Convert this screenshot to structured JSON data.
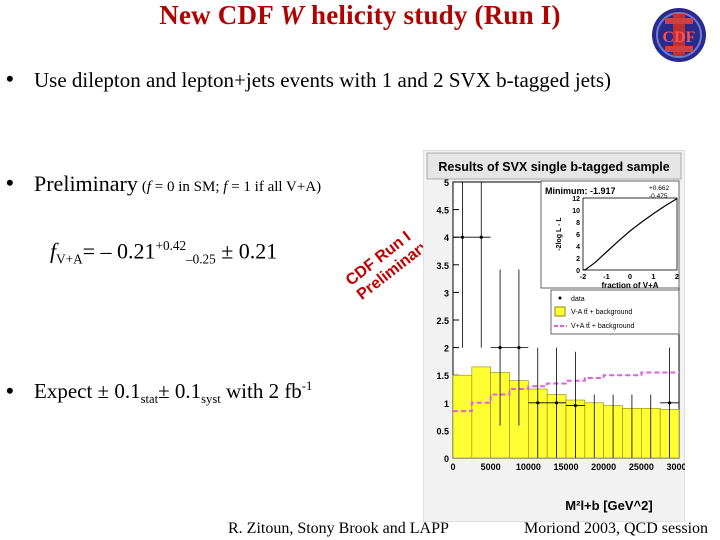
{
  "slide": {
    "title_pre": "New CDF ",
    "title_w": "W",
    "title_post": " helicity study (Run I)",
    "logo_text": "CDF",
    "bullet1": "Use dilepton and lepton+jets events with 1 and 2 SVX b-tagged jets)",
    "bullet2_main": "Preliminary",
    "bullet2_note_a": "(",
    "bullet2_note_f1": "f",
    "bullet2_note_b": " = 0 in SM; ",
    "bullet2_note_f2": "f",
    "bullet2_note_c": " = 1 if all V+A)",
    "formula": {
      "f": "f",
      "sub": "V+A",
      "eq": "= – 0.21",
      "sup": "+0.42",
      "sub2": "–0.25",
      "rest": " ± 0.21"
    },
    "stamp": "CDF Run I Preliminary",
    "bullet3": {
      "pre": "Expect ± 0.1",
      "sub1": "stat",
      "mid": "± 0.1",
      "sub2": "syst",
      "post": " with 2 fb",
      "sup": "-1"
    },
    "footer_left": "R. Zitoun, Stony Brook and LAPP",
    "footer_right": "Moriond 2003, QCD session"
  },
  "chart_data": {
    "type": "bar",
    "title": "Results of SVX single b-tagged sample",
    "xlabel": "M²l+b  [GeV^2]",
    "ylabel": "",
    "x_ticks": [
      "0",
      "5000",
      "10000",
      "15000",
      "20000",
      "25000",
      "30000"
    ],
    "y_ticks": [
      "0",
      "0.5",
      "1",
      "1.5",
      "2",
      "2.5",
      "3",
      "3.5",
      "4",
      "4.5",
      "5"
    ],
    "xlim": [
      0,
      30000
    ],
    "ylim": [
      0,
      5
    ],
    "bin_edges": [
      0,
      2500,
      5000,
      7500,
      10000,
      12500,
      15000,
      17500,
      20000,
      22500,
      25000,
      27500,
      30000
    ],
    "series": [
      {
        "name": "data",
        "values": [
          4,
          4,
          2,
          2,
          1,
          1,
          0.95,
          0,
          0,
          0,
          0,
          1
        ]
      },
      {
        "name": "V-A tt̄ + background",
        "values": [
          1.5,
          1.65,
          1.55,
          1.4,
          1.25,
          1.15,
          1.05,
          1.0,
          0.95,
          0.9,
          0.9,
          0.88
        ]
      },
      {
        "name": "V+A tt̄ + background",
        "values": [
          0.85,
          1.0,
          1.15,
          1.25,
          1.3,
          1.35,
          1.4,
          1.45,
          1.5,
          1.5,
          1.55,
          1.55
        ]
      }
    ],
    "legend": [
      "data",
      "V-A tt̄ + background",
      "V+A tt̄ + background"
    ],
    "legend_position": "right",
    "inset": {
      "label": "Minimum: -1.917",
      "err_up": "+0.662",
      "err_down": "-0.475",
      "ylabel": "-2log L - L",
      "xlabel": "fraction of V+A",
      "x_ticks": [
        "-2",
        "-1",
        "0",
        "1",
        "2"
      ],
      "y_ticks": [
        "0",
        "2",
        "4",
        "6",
        "8",
        "10",
        "12"
      ],
      "xlim": [
        -2,
        2
      ],
      "ylim": [
        0,
        12
      ],
      "curve_x": [
        -2,
        -1.917,
        -1.5,
        -1,
        -0.5,
        0,
        0.5,
        1,
        1.5,
        2
      ],
      "curve_y": [
        0.05,
        0,
        1.2,
        3.0,
        4.8,
        6.5,
        8.0,
        9.4,
        10.7,
        11.9
      ]
    }
  }
}
